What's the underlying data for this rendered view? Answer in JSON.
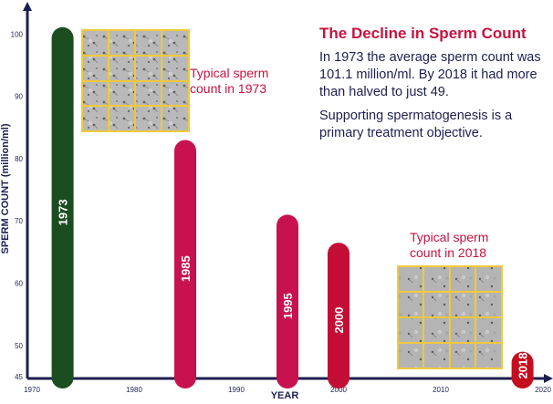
{
  "chart_data": {
    "type": "bar",
    "xlabel": "YEAR",
    "ylabel": "SPERM COUNT (million/ml)",
    "xlim": [
      1970,
      2020
    ],
    "ylim": [
      45,
      104
    ],
    "x_ticks": [
      "1970",
      "1980",
      "1990",
      "2000",
      "2010",
      "2020"
    ],
    "y_ticks": [
      "45",
      "50",
      "60",
      "70",
      "80",
      "90",
      "100"
    ],
    "categories": [
      "1973",
      "1985",
      "1995",
      "2000",
      "2018"
    ],
    "values": [
      101.1,
      83,
      71,
      66.5,
      49
    ],
    "bar_colors": [
      "#1b4d20",
      "#c8124f",
      "#c8124f",
      "#c40d35",
      "#c40d1f"
    ],
    "title": "The Decline in Sperm Count",
    "paragraphs": [
      [
        "In 1973 the average sperm count was",
        "101.1 million/ml. By 2018 it had more",
        "than halved to just 49."
      ],
      [
        "Supporting spermatogenesis is a",
        "primary treatment objective."
      ]
    ],
    "captions": [
      [
        "Typical sperm",
        "count in 1973"
      ],
      [
        "Typical sperm",
        "count in 2018"
      ]
    ]
  }
}
